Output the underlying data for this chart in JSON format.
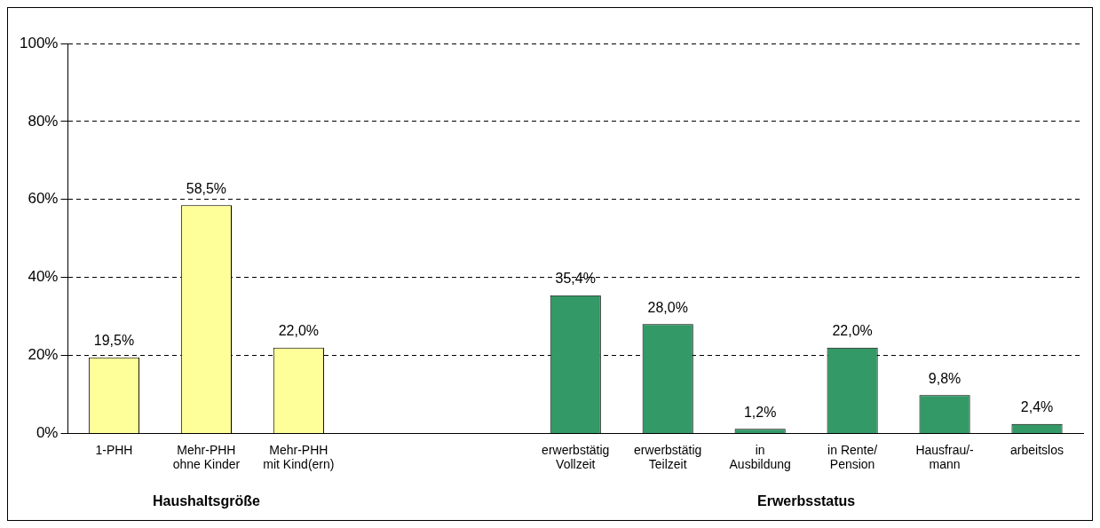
{
  "chart_data": {
    "type": "bar",
    "categories": [
      "1-PHH",
      "Mehr-PHH\nohne Kinder",
      "Mehr-PHH\nmit Kind(ern)",
      null,
      null,
      "erwerbstätig\nVollzeit",
      "erwerbstätig\nTeilzeit",
      "in\nAusbildung",
      "in Rente/\nPension",
      "Hausfrau/-\nmann",
      "arbeitslos"
    ],
    "values": [
      19.5,
      58.5,
      22.0,
      null,
      null,
      35.4,
      28.0,
      1.2,
      22.0,
      9.8,
      2.4
    ],
    "colors": [
      "#ffff99",
      "#ffff99",
      "#ffff99",
      null,
      null,
      "#339966",
      "#339966",
      "#339966",
      "#339966",
      "#339966",
      "#339966"
    ],
    "value_labels": [
      "19,5%",
      "58,5%",
      "22,0%",
      null,
      null,
      "35,4%",
      "28,0%",
      "1,2%",
      "22,0%",
      "9,8%",
      "2,4%"
    ],
    "ylim": [
      0,
      100
    ],
    "yticks": [
      {
        "value": 0,
        "label": "0%"
      },
      {
        "value": 20,
        "label": "20%"
      },
      {
        "value": 40,
        "label": "40%"
      },
      {
        "value": 60,
        "label": "60%"
      },
      {
        "value": 80,
        "label": "80%"
      },
      {
        "value": 100,
        "label": "100%"
      }
    ],
    "grid": "y",
    "line_style": "dashed",
    "legend": false,
    "annotations": [
      "Haushaltsgröße",
      "Erwerbsstatus"
    ]
  }
}
